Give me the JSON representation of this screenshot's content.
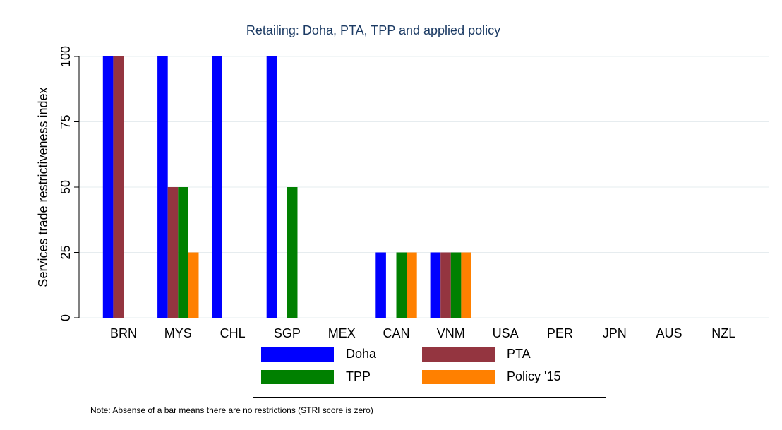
{
  "chart_data": {
    "type": "bar",
    "title": "Retailing: Doha, PTA, TPP and applied policy",
    "y_label": "Services trade restrictiveness index",
    "note": "Note: Absense of a bar means there are no restrictions (STRI score is zero)",
    "categories": [
      "BRN",
      "MYS",
      "CHL",
      "SGP",
      "MEX",
      "CAN",
      "VNM",
      "USA",
      "PER",
      "JPN",
      "AUS",
      "NZL"
    ],
    "series": [
      {
        "name": "Doha",
        "color": "#0000ff",
        "values": [
          100,
          100,
          100,
          100,
          0,
          25,
          25,
          0,
          0,
          0,
          0,
          0
        ]
      },
      {
        "name": "PTA",
        "color": "#943540",
        "values": [
          100,
          50,
          0,
          0,
          0,
          0,
          25,
          0,
          0,
          0,
          0,
          0
        ]
      },
      {
        "name": "TPP",
        "color": "#008000",
        "values": [
          0,
          50,
          0,
          50,
          0,
          25,
          25,
          0,
          0,
          0,
          0,
          0
        ]
      },
      {
        "name": "Policy '15",
        "color": "#ff8000",
        "values": [
          0,
          25,
          0,
          0,
          0,
          25,
          25,
          0,
          0,
          0,
          0,
          0
        ]
      }
    ],
    "ylim": [
      0,
      100
    ],
    "yticks": [
      0,
      25,
      50,
      75,
      100
    ],
    "grid": true
  }
}
